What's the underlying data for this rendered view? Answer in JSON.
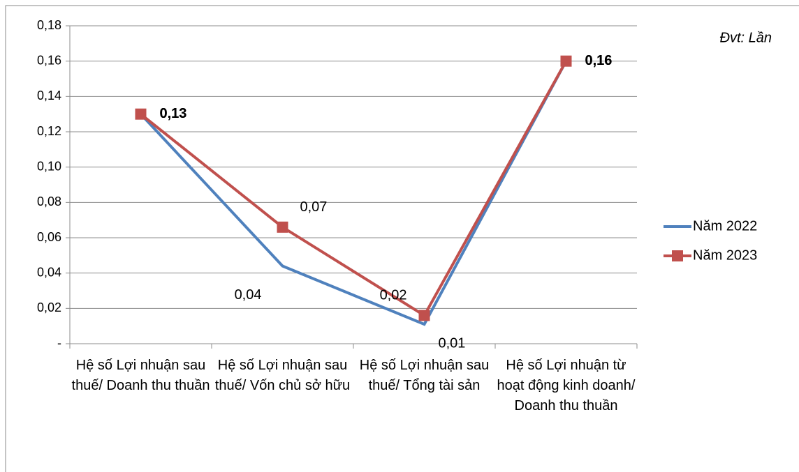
{
  "chart_data": {
    "type": "line",
    "annotation": "Đvt: Lần",
    "categories": [
      "Hệ số Lợi nhuận sau thuế/ Doanh thu thuần",
      "Hệ số Lợi nhuận sau thuế/ Vốn chủ sở hữu",
      "Hệ số Lợi nhuận sau thuế/ Tổng tài sản",
      "Hệ số Lợi nhuận từ hoạt động kinh doanh/ Doanh thu thuần"
    ],
    "series": [
      {
        "name": "Năm 2022",
        "color": "#4f81bd",
        "values": [
          0.13,
          0.044,
          0.011,
          0.16
        ],
        "value_labels": [
          "0,13",
          "0,04",
          "0,01",
          "0,16"
        ]
      },
      {
        "name": "Năm 2023",
        "color": "#c0504d",
        "values": [
          0.13,
          0.066,
          0.016,
          0.16
        ],
        "value_labels": [
          "0,13",
          "0,07",
          "0,02",
          "0,16"
        ]
      }
    ],
    "ylim": [
      0,
      0.18
    ],
    "yticks": [
      {
        "value": 0,
        "label": "-"
      },
      {
        "value": 0.02,
        "label": "0,02"
      },
      {
        "value": 0.04,
        "label": "0,04"
      },
      {
        "value": 0.06,
        "label": "0,06"
      },
      {
        "value": 0.08,
        "label": "0,08"
      },
      {
        "value": 0.1,
        "label": "0,10"
      },
      {
        "value": 0.12,
        "label": "0,12"
      },
      {
        "value": 0.14,
        "label": "0,14"
      },
      {
        "value": 0.16,
        "label": "0,16"
      },
      {
        "value": 0.18,
        "label": "0,18"
      }
    ],
    "grid": true,
    "legend": "right"
  }
}
